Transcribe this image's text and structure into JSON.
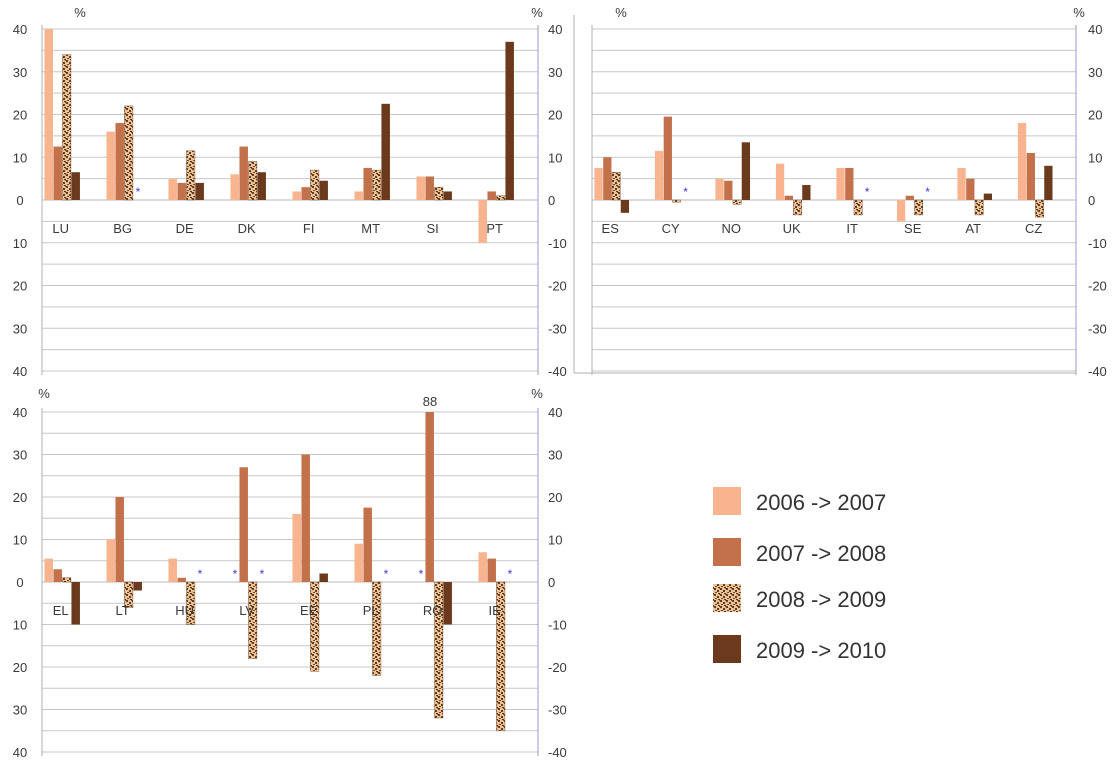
{
  "chart_data": [
    {
      "type": "bar",
      "categories": [
        "LU",
        "BG",
        "DE",
        "DK",
        "FI",
        "MT",
        "SI",
        "PT"
      ],
      "series": [
        {
          "name": "2006 -> 2007",
          "values": [
            45,
            16,
            5,
            6,
            2,
            2,
            5.5,
            -10
          ]
        },
        {
          "name": "2007 -> 2008",
          "values": [
            12.5,
            18,
            4,
            12.5,
            3,
            7.5,
            5.5,
            2
          ]
        },
        {
          "name": "2008 -> 2009",
          "values": [
            34,
            22,
            11.5,
            9,
            7,
            7,
            3,
            1
          ]
        },
        {
          "name": "2009 -> 2010",
          "values": [
            6.5,
            null,
            4,
            6.5,
            4.5,
            22.5,
            2,
            37
          ]
        }
      ],
      "missing_marker": "*",
      "unit_label_left": "%",
      "unit_label_right": "%",
      "left_ticks": [
        "40",
        "30",
        "20",
        "10",
        "0",
        "10",
        "20",
        "30",
        "40"
      ],
      "right_ticks": [
        "40",
        "30",
        "20",
        "10",
        "0",
        "-10",
        "-20",
        "-30",
        "-40"
      ],
      "ylim": [
        -40,
        40
      ],
      "grid": true
    },
    {
      "type": "bar",
      "categories": [
        "ES",
        "CY",
        "NO",
        "UK",
        "IT",
        "SE",
        "AT",
        "CZ"
      ],
      "series": [
        {
          "name": "2006 -> 2007",
          "values": [
            7.5,
            11.5,
            5,
            8.5,
            7.5,
            -5,
            7.5,
            18
          ]
        },
        {
          "name": "2007 -> 2008",
          "values": [
            10,
            19.5,
            4.5,
            1,
            7.5,
            1,
            5,
            11
          ]
        },
        {
          "name": "2008 -> 2009",
          "values": [
            6.5,
            -0.5,
            -1,
            -3.5,
            -3.5,
            -3.5,
            -3.5,
            -4
          ]
        },
        {
          "name": "2009 -> 2010",
          "values": [
            -3,
            null,
            13.5,
            3.5,
            null,
            null,
            1.5,
            8
          ]
        }
      ],
      "missing_marker": "*",
      "unit_label_left": "%",
      "unit_label_right": "%",
      "right_ticks": [
        "40",
        "30",
        "20",
        "10",
        "0",
        "-10",
        "-20",
        "-30",
        "-40"
      ],
      "ylim": [
        -40,
        40
      ],
      "grid": true
    },
    {
      "type": "bar",
      "categories": [
        "EL",
        "LT",
        "HU",
        "LV",
        "EE",
        "PL",
        "RO",
        "IE"
      ],
      "series": [
        {
          "name": "2006 -> 2007",
          "values": [
            5.5,
            10,
            5.5,
            null,
            16,
            9,
            null,
            7
          ]
        },
        {
          "name": "2007 -> 2008",
          "values": [
            3,
            20,
            1,
            27,
            30,
            17.5,
            88,
            5.5
          ]
        },
        {
          "name": "2008 -> 2009",
          "values": [
            1,
            -6,
            -10,
            -18,
            -21,
            -22,
            -32,
            -35
          ]
        },
        {
          "name": "2009 -> 2010",
          "values": [
            -10,
            -2,
            null,
            null,
            2,
            null,
            -10,
            null
          ]
        }
      ],
      "missing_marker": "*",
      "overflow_label": "88",
      "unit_label_left": "%",
      "unit_label_right": "%",
      "left_ticks": [
        "40",
        "30",
        "20",
        "10",
        "0",
        "10",
        "20",
        "30",
        "40"
      ],
      "right_ticks": [
        "40",
        "30",
        "20",
        "10",
        "0",
        "-10",
        "-20",
        "-30",
        "-40"
      ],
      "ylim": [
        -40,
        40
      ],
      "grid": true
    }
  ],
  "legend": {
    "placement": "bottom-right",
    "items": [
      {
        "label": "2006 -> 2007",
        "swatch": "light"
      },
      {
        "label": "2007 -> 2008",
        "swatch": "medium"
      },
      {
        "label": "2008 -> 2009",
        "swatch": "pattern"
      },
      {
        "label": "2009 -> 2010",
        "swatch": "dark"
      }
    ]
  },
  "colors": {
    "light": "#f7b48e",
    "medium": "#c3714b",
    "pattern_bg": "#e6c49a",
    "pattern_fg": "#6b3a1c",
    "dark": "#6b3a1c",
    "grid": "#c8c8c8",
    "axis": "#9a9ad0",
    "marker": "#3a3ad6"
  }
}
